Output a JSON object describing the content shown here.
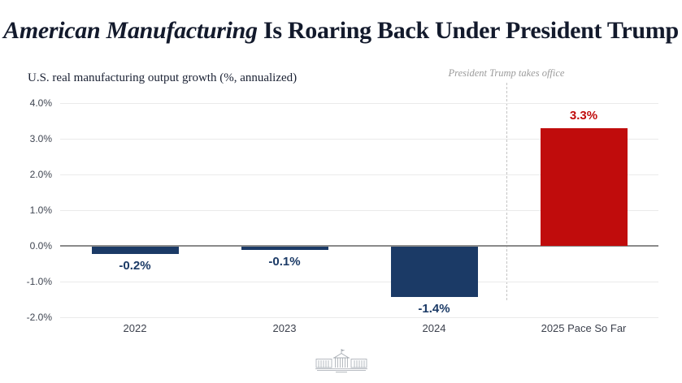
{
  "header": {
    "title_italic": "American Manufacturing",
    "title_rest": " Is Roaring Back Under President Trump",
    "subtitle": "U.S. real manufacturing output growth (%, annualized)"
  },
  "annotation": {
    "text": "President Trump takes office"
  },
  "chart_data": {
    "type": "bar",
    "title": "American Manufacturing Is Roaring Back Under President Trump",
    "subtitle": "U.S. real manufacturing output growth (%, annualized)",
    "categories": [
      "2022",
      "2023",
      "2024",
      "2025 Pace So Far"
    ],
    "values": [
      -0.2,
      -0.1,
      -1.4,
      3.3
    ],
    "data_labels": [
      "-0.2%",
      "-0.1%",
      "-1.4%",
      "3.3%"
    ],
    "bar_colors": [
      "#1b3a66",
      "#1b3a66",
      "#1b3a66",
      "#c00c0c"
    ],
    "label_colors": [
      "#1b3a66",
      "#1b3a66",
      "#1b3a66",
      "#c00c0c"
    ],
    "xlabel": "",
    "ylabel": "U.S. real manufacturing output growth (%, annualized)",
    "ylim": [
      -2.0,
      4.0
    ],
    "yticks": [
      {
        "value": 4.0,
        "label": "4.0%"
      },
      {
        "value": 3.0,
        "label": "3.0%"
      },
      {
        "value": 2.0,
        "label": "2.0%"
      },
      {
        "value": 1.0,
        "label": "1.0%"
      },
      {
        "value": 0.0,
        "label": "0.0%"
      },
      {
        "value": -1.0,
        "label": "-1.0%"
      },
      {
        "value": -2.0,
        "label": "-2.0%"
      }
    ],
    "grid": true,
    "legend_position": "none",
    "annotation": {
      "text": "President Trump takes office",
      "line_style": "dashed",
      "position_between_categories": [
        "2024",
        "2025 Pace So Far"
      ]
    }
  },
  "colors": {
    "navy": "#1b3a66",
    "red": "#c00c0c",
    "gridline": "#eaeaea",
    "zero_line": "#8a8a8a",
    "annotation_gray": "#9b9b9b"
  },
  "footer": {
    "logo": "white-house-icon"
  }
}
